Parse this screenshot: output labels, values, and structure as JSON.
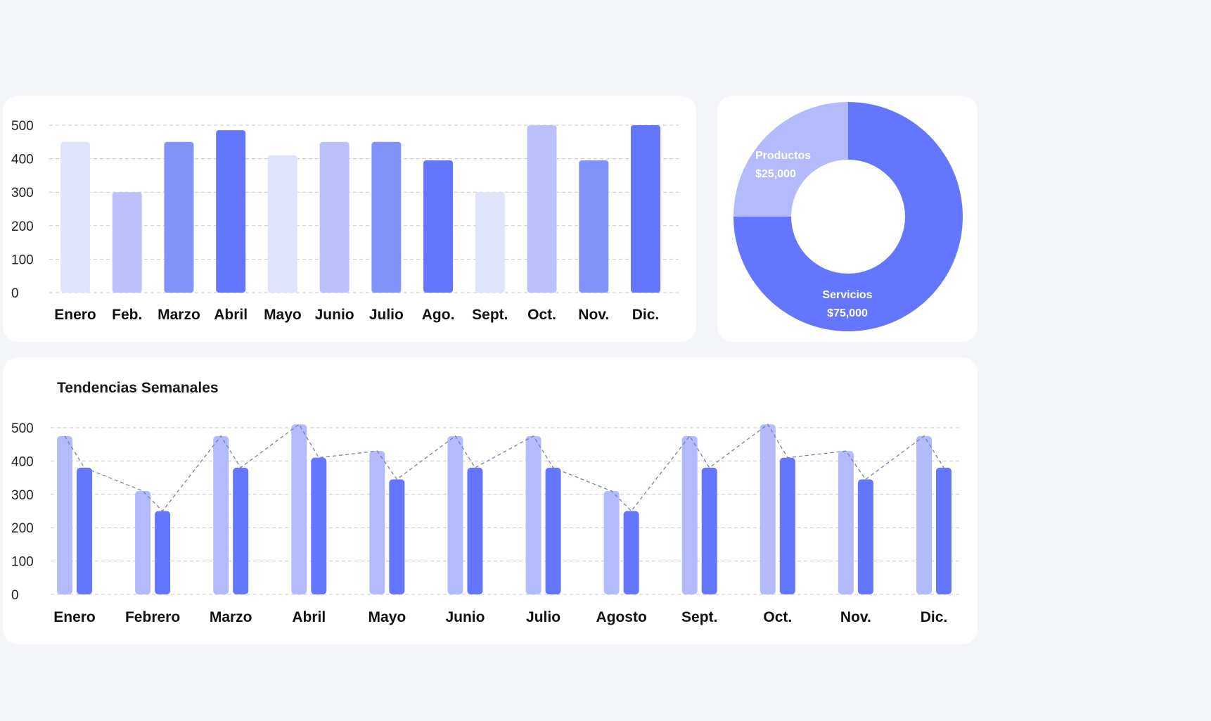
{
  "chart_data": [
    {
      "type": "bar",
      "title": "",
      "categories": [
        "Enero",
        "Feb.",
        "Marzo",
        "Abril",
        "Mayo",
        "Junio",
        "Julio",
        "Ago.",
        "Sept.",
        "Oct.",
        "Nov.",
        "Dic."
      ],
      "values": [
        450,
        300,
        450,
        485,
        410,
        450,
        450,
        395,
        300,
        500,
        395,
        500
      ],
      "yticks": [
        0,
        100,
        200,
        300,
        400,
        500
      ],
      "ylim": [
        0,
        500
      ],
      "grid": true,
      "colors": [
        "#dfe3fc",
        "#bcc1fb",
        "#8292fb",
        "#6475fe",
        "#dfe3fc",
        "#bcc1fb",
        "#8292fb",
        "#6475fe",
        "#dfe3fc",
        "#bcc1fb",
        "#8292fb",
        "#6475fe"
      ]
    },
    {
      "type": "pie",
      "donut": true,
      "slices": [
        {
          "label": "Servicios",
          "value_label": "$75,000",
          "value": 75000,
          "color": "#6476fe"
        },
        {
          "label": "Productos",
          "value_label": "$25,000",
          "value": 25000,
          "color": "#b3bbfc"
        }
      ]
    },
    {
      "type": "bar",
      "title": "Tendencias Semanales",
      "categories": [
        "Enero",
        "Febrero",
        "Marzo",
        "Abril",
        "Mayo",
        "Junio",
        "Julio",
        "Agosto",
        "Sept.",
        "Oct.",
        "Nov.",
        "Dic."
      ],
      "series": [
        {
          "values": [
            475,
            310,
            475,
            510,
            430,
            475,
            475,
            310,
            475,
            510,
            430,
            475
          ],
          "color": "#b3bbfc"
        },
        {
          "values": [
            380,
            250,
            380,
            410,
            345,
            380,
            380,
            250,
            380,
            410,
            345,
            380
          ],
          "color": "#6476fe"
        }
      ],
      "trend_line": {
        "style": "dashed",
        "color": "#7a7fa8"
      },
      "yticks": [
        0,
        100,
        200,
        300,
        400,
        500
      ],
      "ylim": [
        0,
        500
      ],
      "grid": true
    }
  ]
}
